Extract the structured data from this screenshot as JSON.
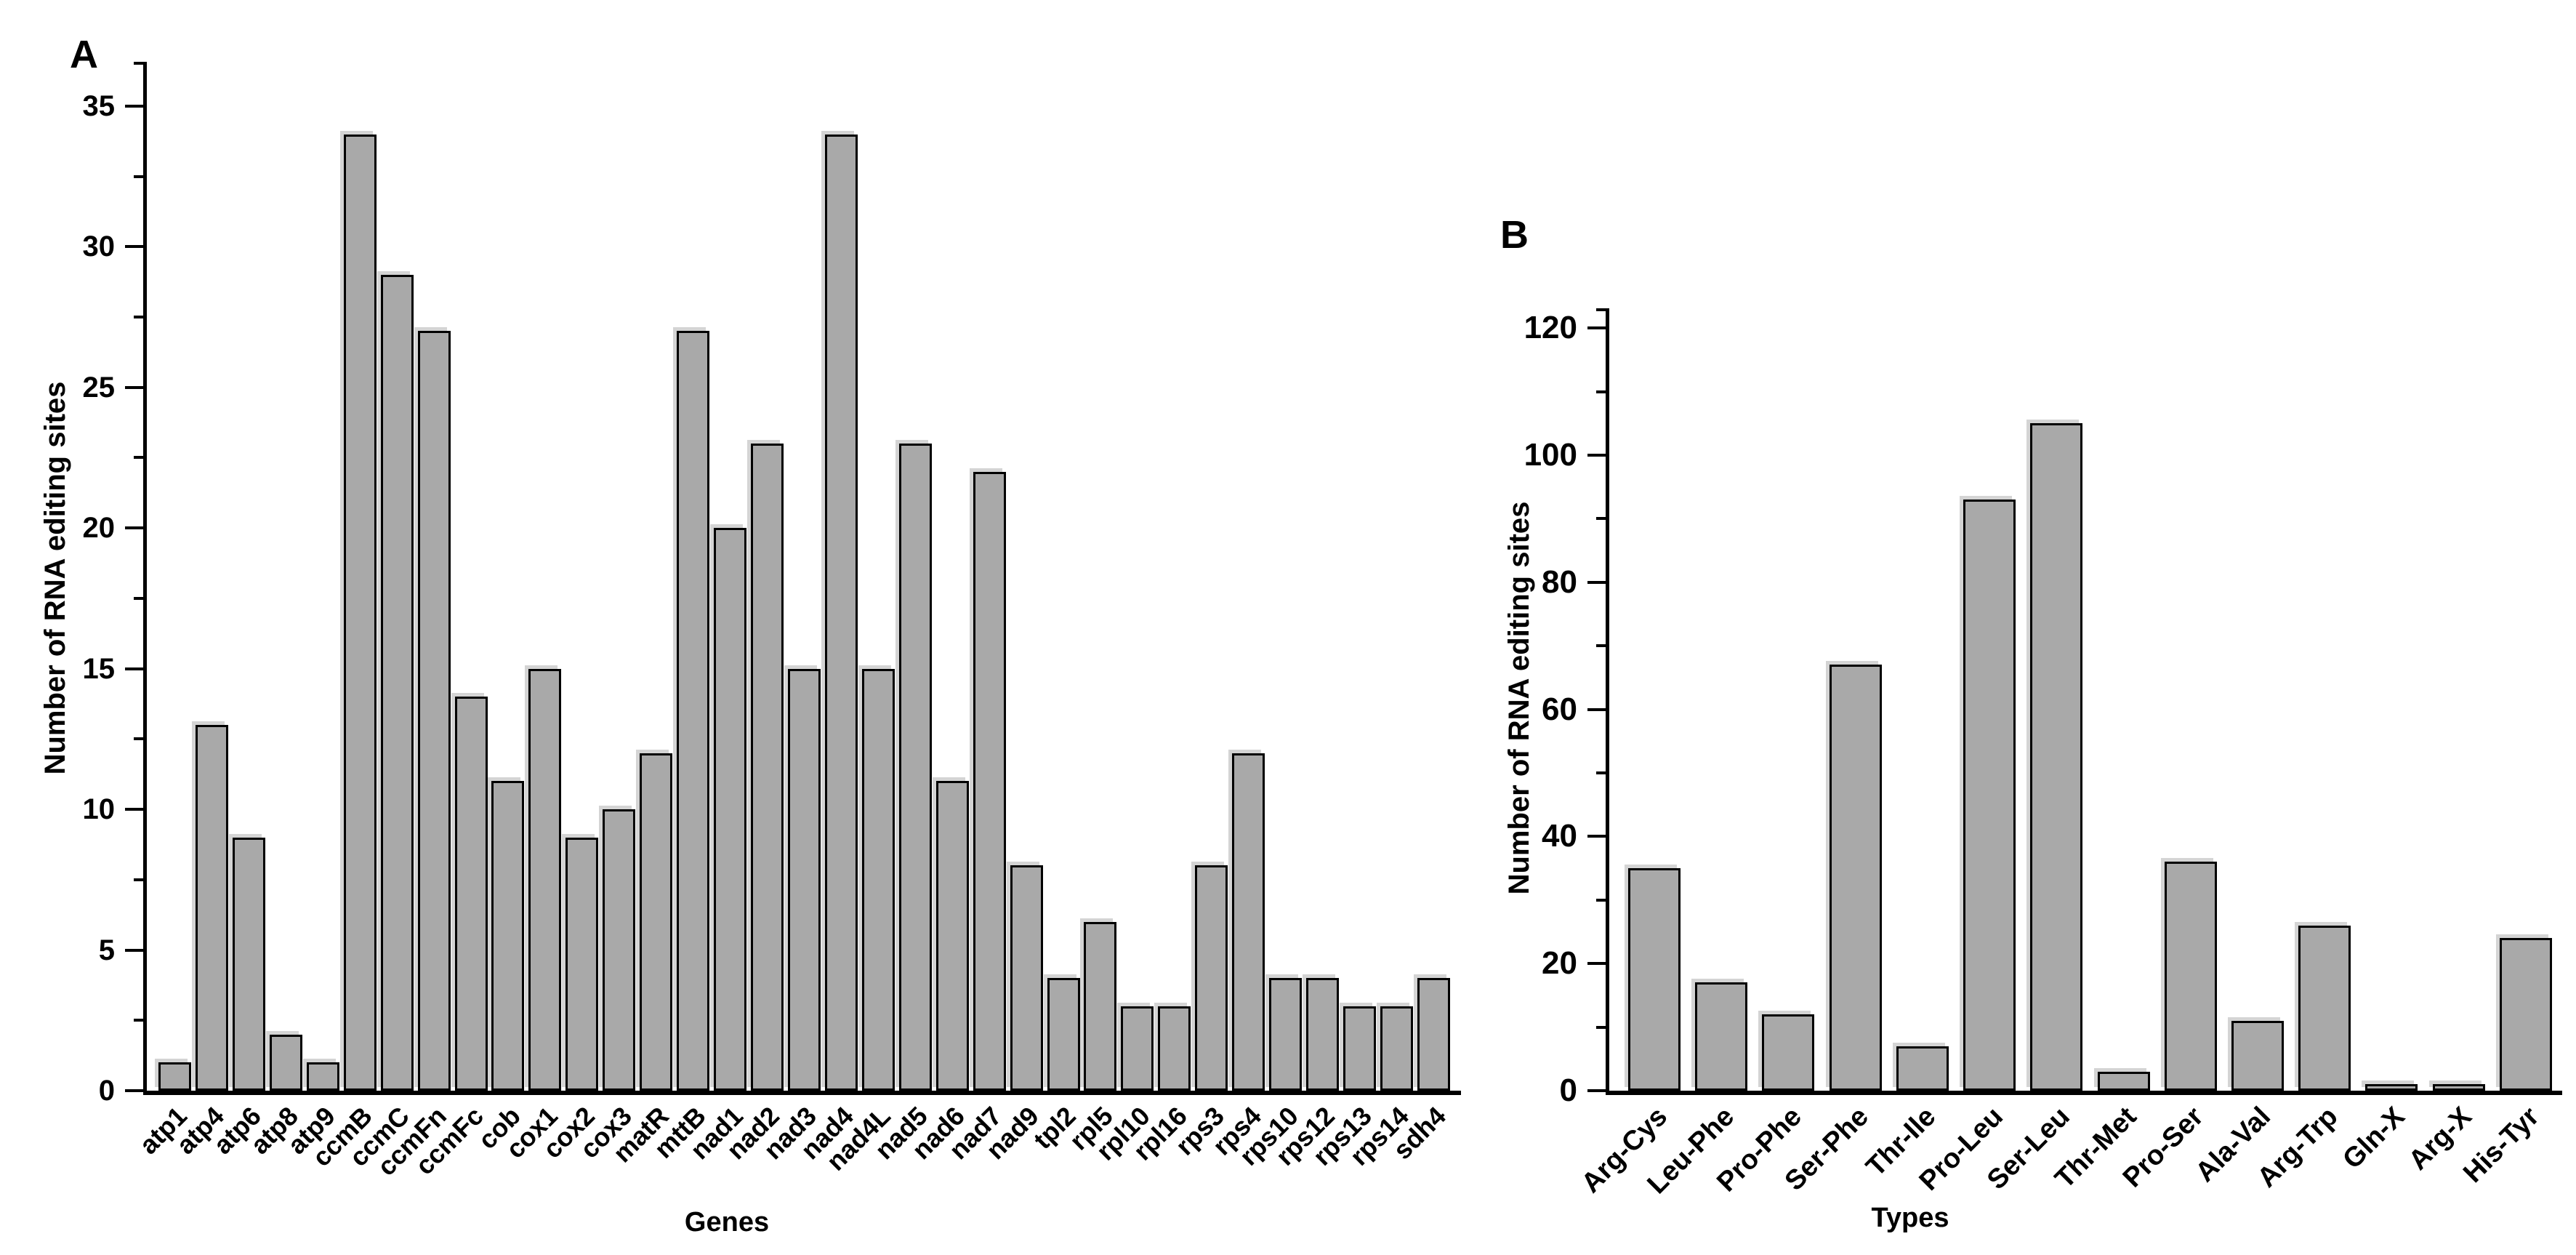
{
  "figure": {
    "background": "#ffffff",
    "bar_fill": "#a9a9a9",
    "bar_border": "#000000",
    "bar_shadow": "#d4d4d4"
  },
  "chart_data": [
    {
      "type": "bar",
      "panel_label": "A",
      "xlabel": "Genes",
      "ylabel": "Number of RNA editing sites",
      "categories": [
        "atp1",
        "atp4",
        "atp6",
        "atp8",
        "atp9",
        "ccmB",
        "ccmC",
        "ccmFn",
        "ccmFc",
        "cob",
        "cox1",
        "cox2",
        "cox3",
        "matR",
        "mttB",
        "nad1",
        "nad2",
        "nad3",
        "nad4",
        "nad4L",
        "nad5",
        "nad6",
        "nad7",
        "nad9",
        "tpl2",
        "rpl5",
        "rpl10",
        "rpl16",
        "rps3",
        "rps4",
        "rps10",
        "rps12",
        "rps13",
        "rps14",
        "sdh4"
      ],
      "values": [
        1,
        13,
        9,
        2,
        1,
        34,
        29,
        27,
        14,
        11,
        15,
        9,
        10,
        12,
        27,
        20,
        23,
        15,
        34,
        15,
        23,
        11,
        22,
        8,
        4,
        6,
        3,
        3,
        8,
        12,
        4,
        4,
        3,
        3,
        4
      ],
      "ylim": [
        0,
        37
      ],
      "yticks": [
        0,
        5,
        10,
        15,
        20,
        25,
        30,
        35
      ],
      "minor_step": 2.5,
      "grid": false,
      "legend": false,
      "bar_color": "#a9a9a9",
      "bar_border": "#000000"
    },
    {
      "type": "bar",
      "panel_label": "B",
      "xlabel": "Types",
      "ylabel": "Number of RNA editing sites",
      "categories": [
        "Arg-Cys",
        "Leu-Phe",
        "Pro-Phe",
        "Ser-Phe",
        "Thr-Ile",
        "Pro-Leu",
        "Ser-Leu",
        "Thr-Met",
        "Pro-Ser",
        "Ala-Val",
        "Arg-Trp",
        "Gln-X",
        "Arg-X",
        "His-Tyr"
      ],
      "values": [
        35,
        17,
        12,
        67,
        7,
        93,
        105,
        3,
        36,
        11,
        26,
        1,
        1,
        24
      ],
      "ylim": [
        0,
        123
      ],
      "yticks": [
        0,
        20,
        40,
        60,
        80,
        100,
        120
      ],
      "minor_step": 10,
      "grid": false,
      "legend": false,
      "bar_color": "#a9a9a9",
      "bar_border": "#000000"
    }
  ]
}
